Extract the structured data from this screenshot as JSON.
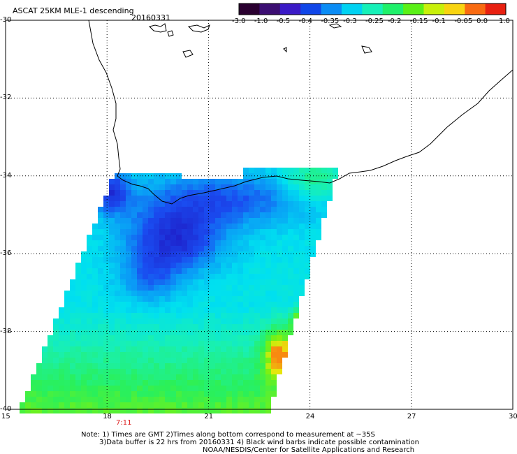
{
  "header": {
    "title": "ASCAT 25KM MLE-1 descending",
    "date": "20160331"
  },
  "colorbar": {
    "labels": [
      "-3.0",
      "-1.0",
      "-0.5",
      "-0.4",
      "-0.35",
      "-0.3",
      "-0.25",
      "-0.2",
      "-0.15",
      "-0.1",
      "-0.05",
      "0.0",
      "1.0"
    ],
    "colors": [
      "#2a0030",
      "#3b0e72",
      "#3a1ac6",
      "#1046e8",
      "#0a8cf5",
      "#00d2f2",
      "#16f0b8",
      "#1ff06a",
      "#5af016",
      "#c8f00a",
      "#f8d410",
      "#f86a10",
      "#e82010"
    ]
  },
  "axes": {
    "x_ticks": [
      "15",
      "18",
      "21",
      "24",
      "27",
      "30"
    ],
    "y_ticks": [
      "-30",
      "-32",
      "-34",
      "-36",
      "-38",
      "-40"
    ],
    "x_range": [
      15,
      30
    ],
    "y_range": [
      -40,
      -30
    ]
  },
  "time_marker": {
    "label": "7:11",
    "lon": 18.5
  },
  "notes": {
    "line1": "Note: 1) Times are GMT 2)Times along bottom correspond to measurement at ~35S",
    "line2": "3)Data buffer is 22 hrs from 20160331 4) Black wind barbs indicate possible contamination",
    "line3": "NOAA/NESDIS/Center for Satellite Applications and Research"
  }
}
